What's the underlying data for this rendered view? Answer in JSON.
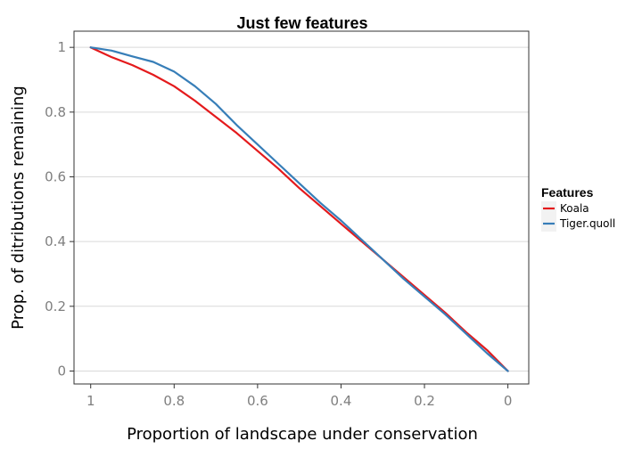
{
  "chart_data": {
    "type": "line",
    "title": "Just few features",
    "xlabel": "Proportion of landscape under conservation",
    "ylabel": "Prop. of ditributions remaining",
    "xlim": [
      1.04,
      -0.05
    ],
    "ylim": [
      -0.04,
      1.05
    ],
    "x_reversed": true,
    "x_ticks": [
      1,
      0.8,
      0.6,
      0.4,
      0.2,
      0
    ],
    "x_tick_labels": [
      "1",
      "0.8",
      "0.6",
      "0.4",
      "0.2",
      "0"
    ],
    "y_ticks": [
      0,
      0.2,
      0.4,
      0.6,
      0.8,
      1
    ],
    "y_tick_labels": [
      "0",
      "0.2",
      "0.4",
      "0.6",
      "0.8",
      "1"
    ],
    "grid": "horizontal major lines",
    "legend": {
      "title": "Features",
      "placement": "right"
    },
    "series": [
      {
        "name": "Koala",
        "color": "#e41a1c",
        "x": [
          1.0,
          0.95,
          0.9,
          0.85,
          0.8,
          0.75,
          0.7,
          0.65,
          0.6,
          0.55,
          0.5,
          0.45,
          0.4,
          0.35,
          0.3,
          0.25,
          0.2,
          0.15,
          0.1,
          0.05,
          0.0
        ],
        "y": [
          1.0,
          0.97,
          0.945,
          0.915,
          0.88,
          0.835,
          0.785,
          0.735,
          0.68,
          0.625,
          0.565,
          0.51,
          0.455,
          0.4,
          0.345,
          0.29,
          0.235,
          0.18,
          0.12,
          0.065,
          0.0
        ]
      },
      {
        "name": "Tiger.quoll",
        "color": "#377eb8",
        "x": [
          1.0,
          0.95,
          0.9,
          0.85,
          0.8,
          0.75,
          0.7,
          0.65,
          0.6,
          0.55,
          0.5,
          0.45,
          0.4,
          0.35,
          0.3,
          0.25,
          0.2,
          0.15,
          0.1,
          0.05,
          0.0
        ],
        "y": [
          1.0,
          0.99,
          0.972,
          0.955,
          0.925,
          0.88,
          0.825,
          0.76,
          0.7,
          0.64,
          0.58,
          0.52,
          0.465,
          0.405,
          0.345,
          0.285,
          0.23,
          0.175,
          0.115,
          0.055,
          0.0
        ]
      }
    ]
  }
}
